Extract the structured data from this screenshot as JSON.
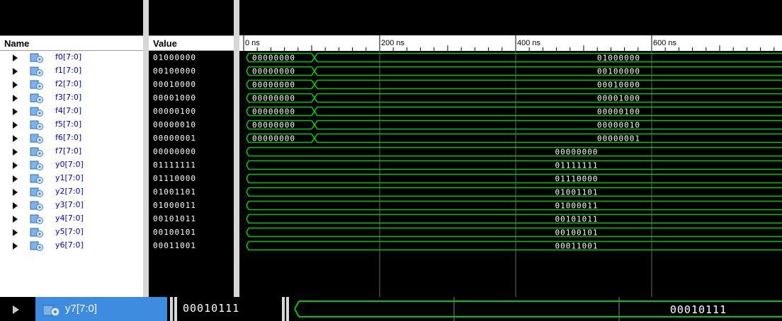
{
  "columns": {
    "name_header": "Name",
    "value_header": "Value"
  },
  "timeline": {
    "labels": [
      "0 ns",
      "200 ns",
      "400 ns",
      "600 ns"
    ]
  },
  "colors": {
    "wave": "#00c800",
    "text": "#ffffff",
    "name_text": "#0000c8",
    "selected": "#3d8ce0"
  },
  "signals": [
    {
      "name": "f0[7:0]",
      "value": "01000000",
      "initial": "00000000"
    },
    {
      "name": "f1[7:0]",
      "value": "00100000",
      "initial": "00000000"
    },
    {
      "name": "f2[7:0]",
      "value": "00010000",
      "initial": "00000000"
    },
    {
      "name": "f3[7:0]",
      "value": "00001000",
      "initial": "00000000"
    },
    {
      "name": "f4[7:0]",
      "value": "00000100",
      "initial": "00000000"
    },
    {
      "name": "f5[7:0]",
      "value": "00000010",
      "initial": "00000000"
    },
    {
      "name": "f6[7:0]",
      "value": "00000001",
      "initial": "00000000"
    },
    {
      "name": "f7[7:0]",
      "value": "00000000",
      "initial": ""
    },
    {
      "name": "y0[7:0]",
      "value": "01111111",
      "initial": ""
    },
    {
      "name": "y1[7:0]",
      "value": "01110000",
      "initial": ""
    },
    {
      "name": "y2[7:0]",
      "value": "01001101",
      "initial": ""
    },
    {
      "name": "y3[7:0]",
      "value": "01000011",
      "initial": ""
    },
    {
      "name": "y4[7:0]",
      "value": "00101011",
      "initial": ""
    },
    {
      "name": "y5[7:0]",
      "value": "00100101",
      "initial": ""
    },
    {
      "name": "y6[7:0]",
      "value": "00011001",
      "initial": ""
    }
  ],
  "selected_signal": {
    "name": "y7[7:0]",
    "value": "00010111"
  }
}
